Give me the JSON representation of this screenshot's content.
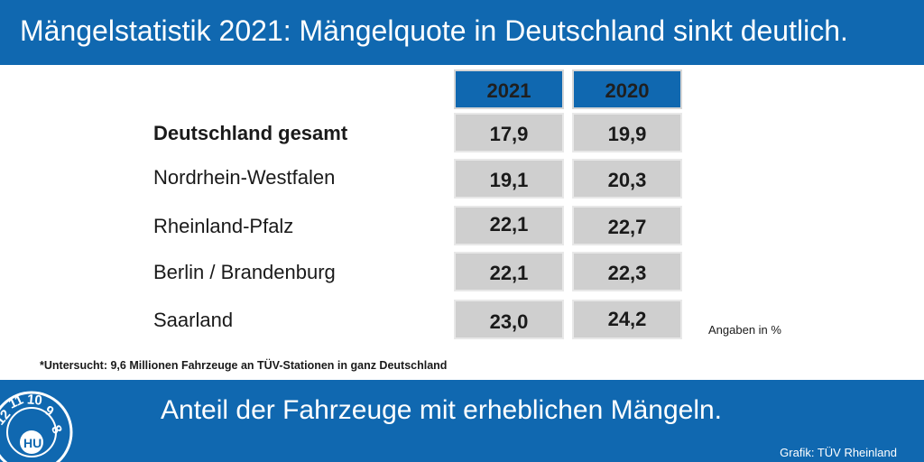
{
  "header": {
    "title": "Mängelstatistik 2021: Mängelquote in Deutschland sinkt deutlich."
  },
  "chart_data": {
    "type": "table",
    "columns": [
      "2021",
      "2020"
    ],
    "rows": [
      {
        "label": "Deutschland gesamt",
        "values": [
          "17,9",
          "19,9"
        ],
        "bold": true
      },
      {
        "label": "Nordrhein-Westfalen",
        "values": [
          "19,1",
          "20,3"
        ]
      },
      {
        "label": "Rheinland-Pfalz",
        "values": [
          "22,1",
          "22,7"
        ]
      },
      {
        "label": "Berlin / Brandenburg",
        "values": [
          "22,1",
          "22,3"
        ]
      },
      {
        "label": "Saarland",
        "values": [
          "23,0",
          "24,2"
        ]
      }
    ],
    "unit_note": "Angaben in %",
    "footnote": "*Untersucht: 9,6 Millionen Fahrzeuge an TÜV-Stationen in ganz Deutschland"
  },
  "footer": {
    "subtitle": "Anteil der Fahrzeuge mit erheblichen Mängeln.",
    "source": "Grafik: TÜV Rheinland",
    "seal_text": [
      "12",
      "11",
      "10",
      "9",
      "8",
      "HU"
    ]
  },
  "colors": {
    "brand_blue": "#1068b0",
    "cell_gray": "#cfcfcf"
  }
}
